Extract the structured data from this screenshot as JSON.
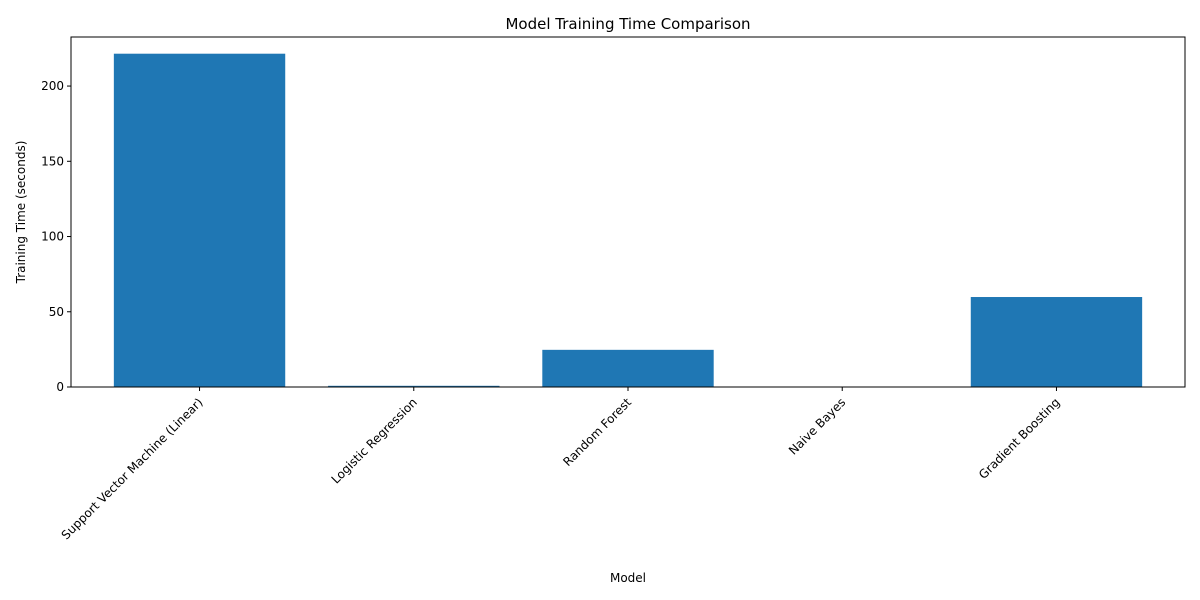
{
  "chart_data": {
    "type": "bar",
    "title": "Model Training Time Comparison",
    "xlabel": "Model",
    "ylabel": "Training Time (seconds)",
    "categories": [
      "Support Vector Machine (Linear)",
      "Logistic Regression",
      "Random Forest",
      "Naive Bayes",
      "Gradient Boosting"
    ],
    "values": [
      221.5,
      0.8,
      24.7,
      0.1,
      59.8
    ],
    "ylim": [
      0,
      232.6
    ],
    "yticks": [
      0,
      50,
      100,
      150,
      200
    ],
    "bar_color": "#1f77b4",
    "grid": false,
    "legend": "none"
  }
}
